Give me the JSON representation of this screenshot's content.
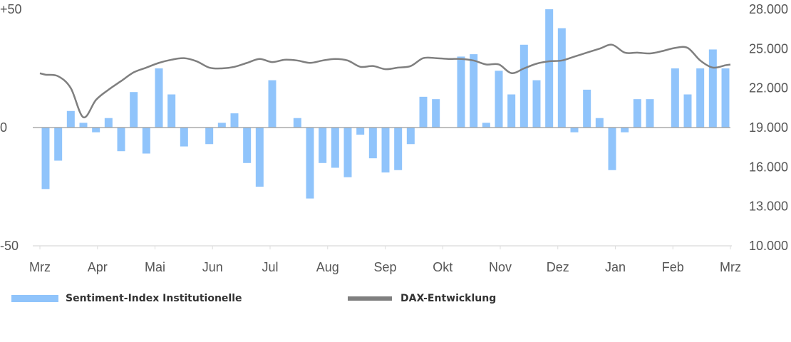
{
  "chart_data": {
    "type": "bar+line",
    "title": "",
    "x_tick_labels": [
      "Mrz",
      "Apr",
      "Mai",
      "Jun",
      "Jul",
      "Aug",
      "Sep",
      "Okt",
      "Nov",
      "Dez",
      "Jan",
      "Feb",
      "Mrz"
    ],
    "y_left": {
      "ylim": [
        -50,
        50
      ],
      "ticks": [
        50,
        0,
        -50
      ],
      "tick_labels": [
        "+50",
        "0",
        "-50"
      ]
    },
    "y_right": {
      "ylim": [
        10000,
        28000
      ],
      "ticks": [
        28000,
        25000,
        22000,
        19000,
        16000,
        13000,
        10000
      ],
      "tick_labels": [
        "28.000",
        "25.000",
        "22.000",
        "19.000",
        "16.000",
        "13.000",
        "10.000"
      ]
    },
    "series": [
      {
        "name": "Sentiment-Index Institutionelle",
        "kind": "bar",
        "axis": "left",
        "color": "#90c4fb",
        "values": [
          -26,
          -14,
          7,
          2,
          -2,
          4,
          -10,
          15,
          -11,
          25,
          14,
          -8,
          0,
          -7,
          2,
          6,
          -15,
          -25,
          20,
          0,
          4,
          -30,
          -15,
          -17,
          -21,
          -3,
          -13,
          -19,
          -18,
          -7,
          13,
          12,
          0,
          30,
          31,
          2,
          24,
          14,
          35,
          20,
          50,
          42,
          -2,
          16,
          4,
          -18,
          -2,
          12,
          12,
          0,
          25,
          14,
          25,
          33,
          25
        ]
      },
      {
        "name": "DAX-Entwicklung",
        "kind": "line",
        "axis": "right",
        "color": "#7f7f7f",
        "values": [
          23020,
          22900,
          22000,
          19780,
          21100,
          21880,
          22540,
          23200,
          23560,
          23920,
          24160,
          24280,
          24040,
          23560,
          23500,
          23620,
          23920,
          24220,
          23980,
          24160,
          24100,
          23920,
          24100,
          24220,
          24100,
          23620,
          23680,
          23440,
          23560,
          23680,
          24280,
          24280,
          24220,
          24220,
          24100,
          23800,
          23800,
          23140,
          23500,
          23860,
          24040,
          24100,
          24400,
          24700,
          25000,
          25300,
          24700,
          24700,
          24640,
          24820,
          25060,
          25060,
          24100,
          23560,
          23740
        ]
      }
    ],
    "legend_position": "bottom-left",
    "grid": false
  },
  "legend": {
    "bar_label": "Sentiment-Index Institutionelle",
    "line_label": "DAX-Entwicklung"
  }
}
